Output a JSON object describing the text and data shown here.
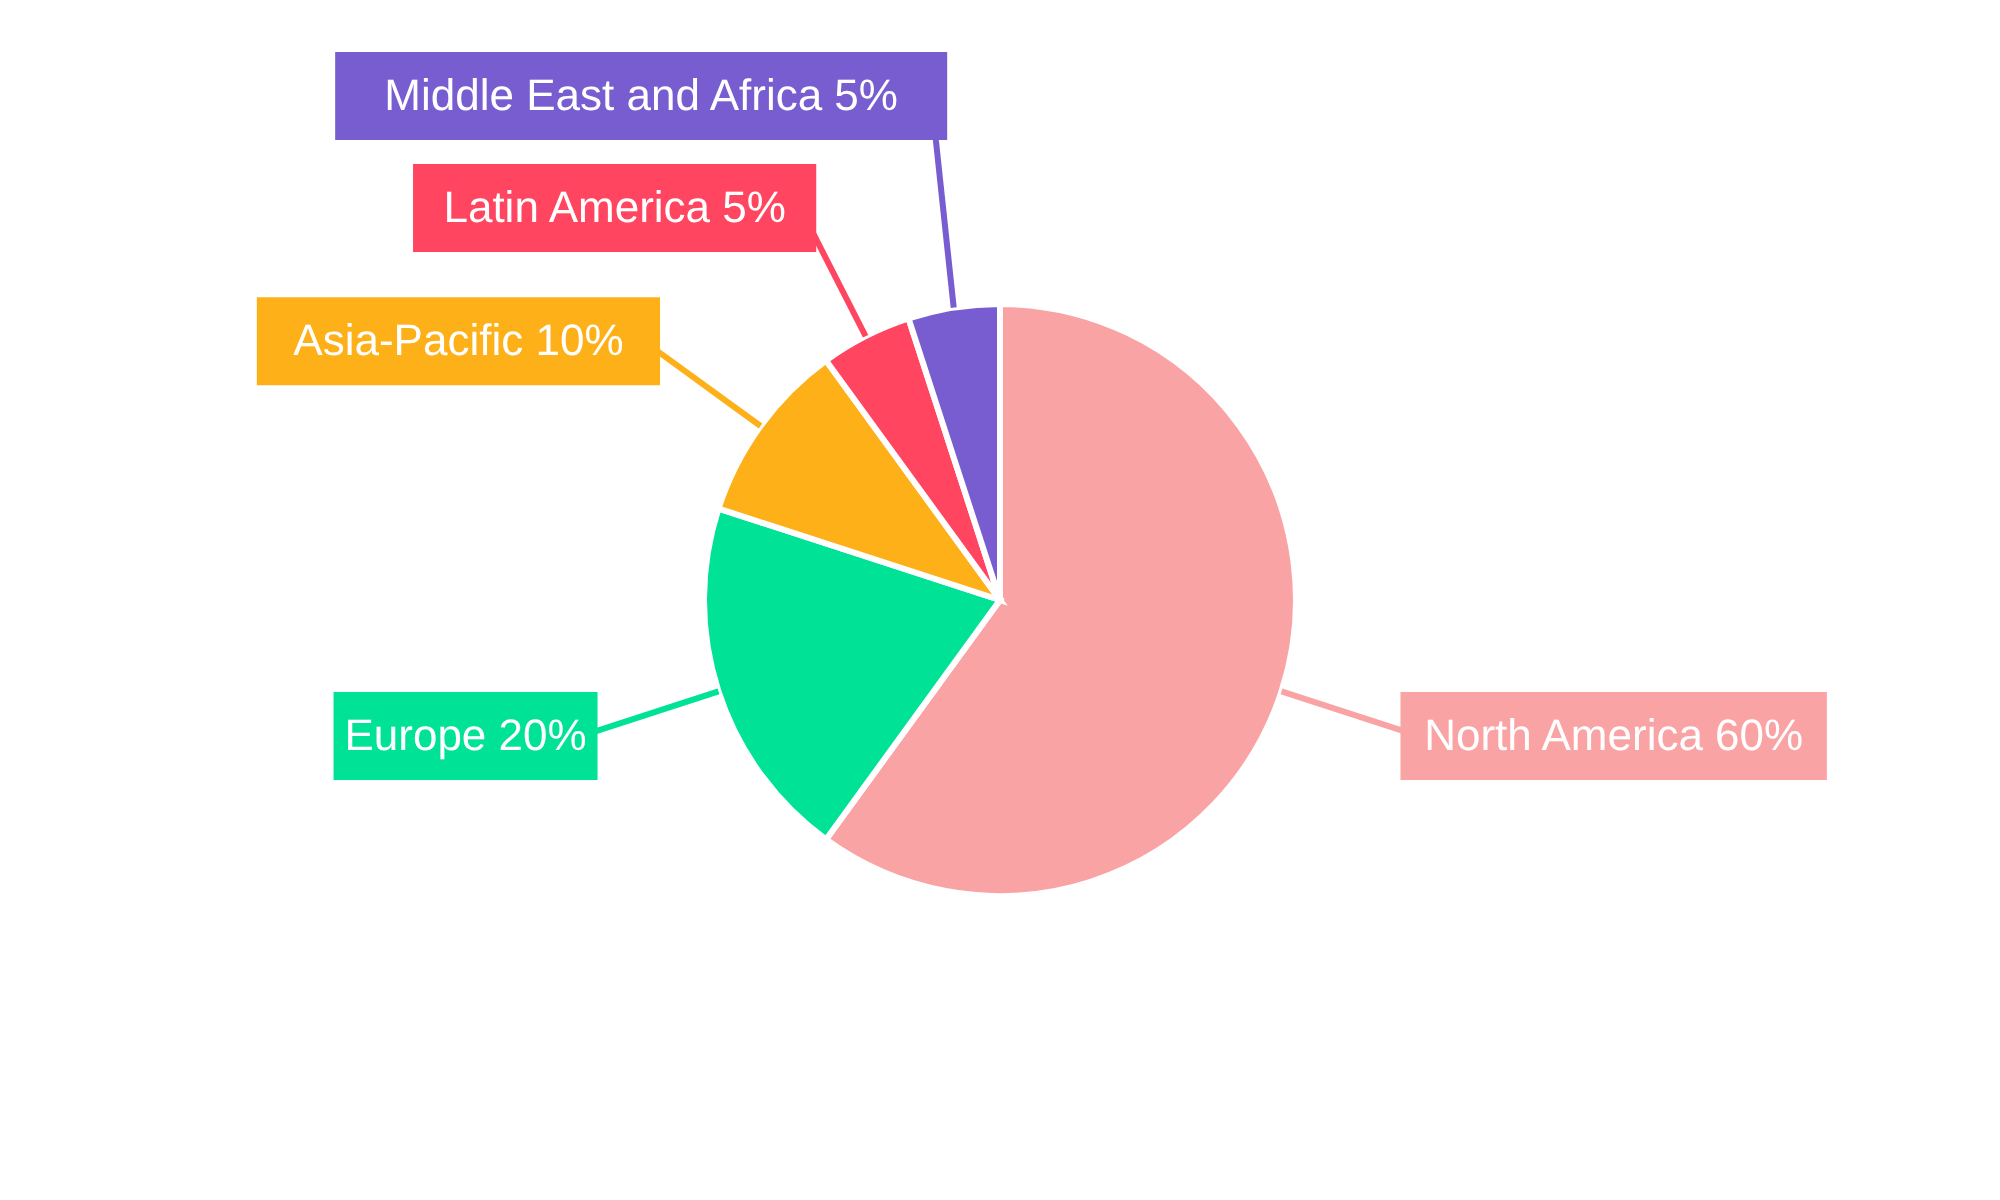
{
  "chart_data": {
    "type": "pie",
    "categories": [
      "North America",
      "Europe",
      "Asia-Pacific",
      "Latin America",
      "Middle East and Africa"
    ],
    "values": [
      60,
      20,
      10,
      5,
      5
    ],
    "colors": [
      "#f9a3a4",
      "#00e396",
      "#feb019",
      "#ff4560",
      "#775dd0"
    ],
    "value_labels": [
      "60%",
      "20%",
      "10%",
      "5%",
      "5%"
    ]
  }
}
